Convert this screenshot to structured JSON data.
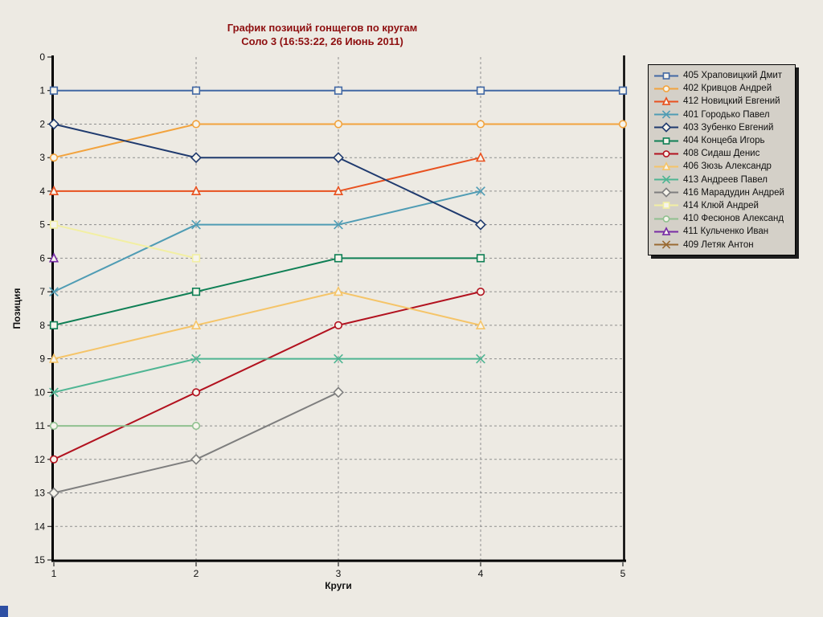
{
  "window": {
    "background": "#edeae3",
    "legend_background": "#d4d0c8",
    "title_color": "#8e0f10",
    "grid_color": "#8f8f8f",
    "axis_color": "#000000"
  },
  "chart_data": {
    "type": "line",
    "title": "График позиций гонщегов по кругам",
    "subtitle": "Соло 3  (16:53:22, 26 Июнь 2011)",
    "xlabel": "Круги",
    "ylabel": "Позиция",
    "x_ticks": [
      1,
      2,
      3,
      4,
      5
    ],
    "y_ticks": [
      0,
      1,
      2,
      3,
      4,
      5,
      6,
      7,
      8,
      9,
      10,
      11,
      12,
      13,
      14,
      15
    ],
    "xlim": [
      1,
      5
    ],
    "ylim": [
      0,
      15
    ],
    "y_inverted": true,
    "grid": true,
    "legend_position": "right",
    "series": [
      {
        "label": "405 Храповицкий Дмит",
        "color": "#4268a4",
        "marker": "square",
        "x": [
          1,
          2,
          3,
          4,
          5
        ],
        "y": [
          1,
          1,
          1,
          1,
          1
        ]
      },
      {
        "label": "402 Кривцов Андрей",
        "color": "#f2a33e",
        "marker": "circle",
        "x": [
          1,
          2,
          3,
          4,
          5
        ],
        "y": [
          3,
          2,
          2,
          2,
          2
        ]
      },
      {
        "label": "412 Новицкий Евгений",
        "color": "#e8511f",
        "marker": "triangle",
        "x": [
          1,
          2,
          3,
          4
        ],
        "y": [
          4,
          4,
          4,
          3
        ]
      },
      {
        "label": "401 Городько Павел",
        "color": "#4f9cb4",
        "marker": "x",
        "x": [
          1,
          2,
          3,
          4
        ],
        "y": [
          7,
          5,
          5,
          4
        ]
      },
      {
        "label": "403 Зубенко Евгений",
        "color": "#1f3a6e",
        "marker": "diamond",
        "x": [
          1,
          2,
          3,
          4
        ],
        "y": [
          2,
          3,
          3,
          5
        ]
      },
      {
        "label": "404 Концеба Игорь",
        "color": "#0f7f55",
        "marker": "square",
        "x": [
          1,
          2,
          3,
          4
        ],
        "y": [
          8,
          7,
          6,
          6
        ]
      },
      {
        "label": "408 Сидаш Денис",
        "color": "#b2121f",
        "marker": "circle",
        "x": [
          1,
          2,
          3,
          4
        ],
        "y": [
          12,
          10,
          8,
          7
        ]
      },
      {
        "label": "406 Зюзь Александр",
        "color": "#f5c468",
        "marker": "triangle",
        "x": [
          1,
          2,
          3,
          4
        ],
        "y": [
          9,
          8,
          7,
          8
        ]
      },
      {
        "label": "413 Андреев Павел",
        "color": "#4fb593",
        "marker": "x",
        "x": [
          1,
          2,
          3,
          4
        ],
        "y": [
          10,
          9,
          9,
          9
        ]
      },
      {
        "label": "416 Марадудин Андрей",
        "color": "#7e7e7e",
        "marker": "diamond",
        "x": [
          1,
          2,
          3
        ],
        "y": [
          13,
          12,
          10
        ]
      },
      {
        "label": "414 Клюй Андрей",
        "color": "#f2efa3",
        "marker": "square",
        "x": [
          1,
          2
        ],
        "y": [
          5,
          6
        ]
      },
      {
        "label": "410 Фесюнов Александ",
        "color": "#8fc08f",
        "marker": "circle",
        "x": [
          1,
          2
        ],
        "y": [
          11,
          11
        ]
      },
      {
        "label": "411 Кульченко Иван",
        "color": "#772ba5",
        "marker": "triangle",
        "x": [
          1
        ],
        "y": [
          6
        ]
      },
      {
        "label": "409 Летяк Антон",
        "color": "#9a6a33",
        "marker": "x",
        "x": [],
        "y": []
      }
    ]
  }
}
